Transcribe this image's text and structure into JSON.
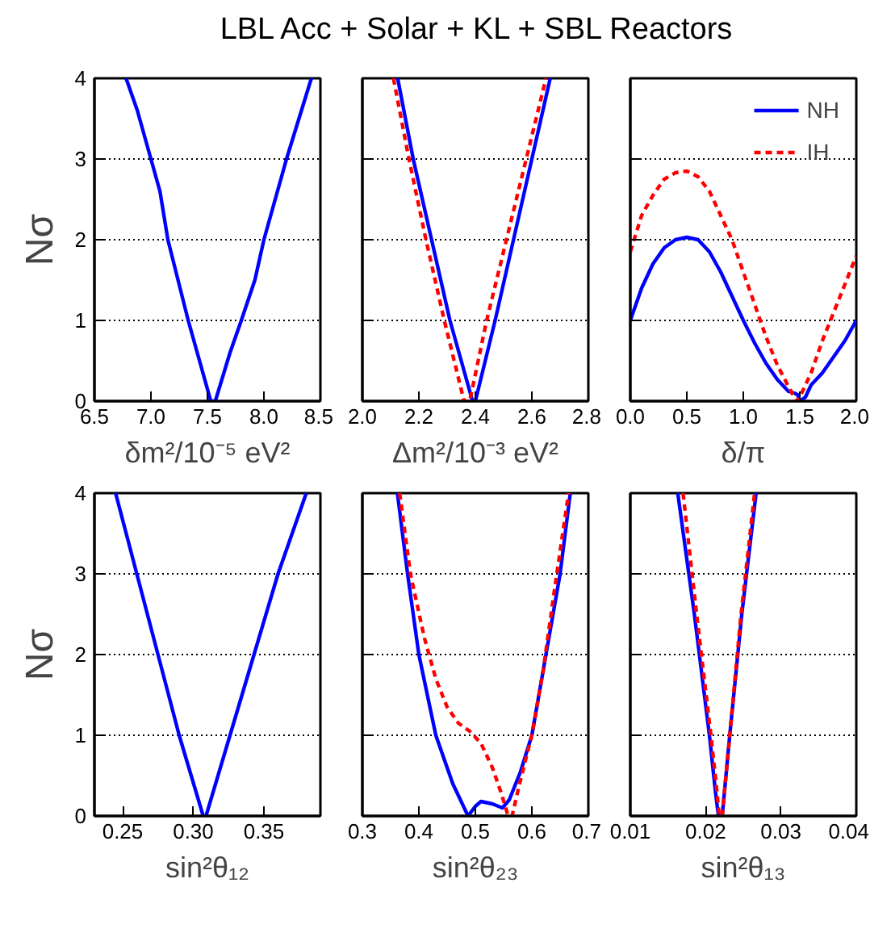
{
  "chart_data": [
    {
      "type": "line",
      "title": "LBL Acc + Solar + KL + SBL Reactors",
      "xlabel": "δm²/10⁻⁵ eV²",
      "ylabel": "Nσ",
      "xlim": [
        6.5,
        8.5
      ],
      "xticks": [
        6.5,
        {
          "value": 7,
          "label": "7.0"
        },
        7.5,
        {
          "value": 8,
          "label": "8.0"
        },
        8.5
      ],
      "ylim": [
        0,
        4
      ],
      "yticks": [
        0,
        1,
        2,
        3,
        4
      ],
      "grid": "y",
      "series": [
        {
          "color": "#0000ff",
          "line_style": "solid",
          "x": [
            6.78,
            6.88,
            7.0,
            7.08,
            7.15,
            7.33,
            7.45,
            7.53,
            7.57,
            7.7,
            7.8,
            7.92,
            8.0,
            8.2,
            8.42
          ],
          "values": [
            4,
            3.6,
            3.0,
            2.6,
            2.0,
            1.0,
            0.4,
            0,
            0,
            0.6,
            1.0,
            1.5,
            2.0,
            3.0,
            4
          ]
        }
      ]
    },
    {
      "type": "line",
      "xlabel": "Δm²/10⁻³ eV²",
      "xlim": [
        2.0,
        2.8
      ],
      "xticks": [
        {
          "value": 2,
          "label": "2.0"
        },
        2.2,
        2.4,
        2.6,
        2.8
      ],
      "ylim": [
        0,
        4
      ],
      "yticks": [
        0,
        1,
        2,
        3,
        4
      ],
      "grid": "y",
      "tick_labels": "x",
      "series": [
        {
          "color": "#0000ff",
          "line_style": "solid",
          "x": [
            2.125,
            2.18,
            2.245,
            2.31,
            2.39,
            2.4,
            2.47,
            2.535,
            2.6,
            2.665
          ],
          "values": [
            4,
            3,
            2,
            1,
            0,
            0,
            1,
            2,
            3,
            4
          ]
        },
        {
          "color": "#ff0000",
          "line_style": "dashed",
          "x": [
            2.11,
            2.165,
            2.225,
            2.29,
            2.36,
            2.38,
            2.44,
            2.51,
            2.58,
            2.65
          ],
          "values": [
            4,
            3,
            2,
            1,
            0,
            0,
            1,
            2,
            3,
            4
          ]
        }
      ]
    },
    {
      "type": "line",
      "xlabel": "δ/π",
      "xlim": [
        0,
        2
      ],
      "xticks": [
        {
          "value": 0,
          "label": "0.0"
        },
        0.5,
        {
          "value": 1,
          "label": "1.0"
        },
        1.5,
        {
          "value": 2,
          "label": "2.0"
        }
      ],
      "ylim": [
        0,
        4
      ],
      "yticks": [
        0,
        1,
        2,
        3,
        4
      ],
      "grid": "y",
      "tick_labels": "x",
      "legend": "top right",
      "series": [
        {
          "name": "NH",
          "color": "#0000ff",
          "line_style": "solid",
          "x": [
            0,
            0.1,
            0.2,
            0.3,
            0.4,
            0.5,
            0.6,
            0.7,
            0.8,
            0.9,
            1.0,
            1.1,
            1.2,
            1.3,
            1.4,
            1.45,
            1.48,
            1.5,
            1.55,
            1.6,
            1.7,
            1.8,
            1.9,
            2.0
          ],
          "values": [
            1.0,
            1.4,
            1.7,
            1.9,
            2.0,
            2.03,
            2.0,
            1.85,
            1.6,
            1.3,
            1.0,
            0.72,
            0.47,
            0.27,
            0.12,
            0.1,
            0.08,
            0.0,
            0.05,
            0.2,
            0.35,
            0.55,
            0.75,
            1.0
          ]
        },
        {
          "name": "IH",
          "color": "#ff0000",
          "line_style": "dashed",
          "x": [
            0,
            0.1,
            0.2,
            0.3,
            0.4,
            0.5,
            0.6,
            0.7,
            0.8,
            0.9,
            1.0,
            1.1,
            1.2,
            1.3,
            1.4,
            1.47,
            1.5,
            1.6,
            1.7,
            1.8,
            1.9,
            2.0
          ],
          "values": [
            1.85,
            2.3,
            2.55,
            2.75,
            2.83,
            2.85,
            2.78,
            2.6,
            2.3,
            2.0,
            1.6,
            1.2,
            0.8,
            0.45,
            0.18,
            0.0,
            0.05,
            0.35,
            0.75,
            1.1,
            1.45,
            1.8
          ]
        }
      ]
    },
    {
      "type": "line",
      "xlabel": "sin²θ₁₂",
      "ylabel": "Nσ",
      "xlim": [
        0.23,
        0.39
      ],
      "xticks": [
        0.25,
        {
          "value": 0.3,
          "label": "0.30"
        },
        0.35
      ],
      "ylim": [
        0,
        4
      ],
      "yticks": [
        0,
        1,
        2,
        3,
        4
      ],
      "grid": "y",
      "series": [
        {
          "color": "#0000ff",
          "line_style": "solid",
          "x": [
            0.245,
            0.26,
            0.275,
            0.29,
            0.307,
            0.309,
            0.326,
            0.343,
            0.36,
            0.38
          ],
          "values": [
            4,
            3,
            2,
            1,
            0,
            0,
            1,
            2,
            3,
            4
          ]
        }
      ]
    },
    {
      "type": "line",
      "xlabel": "sin²θ₂₃",
      "xlim": [
        0.3,
        0.7
      ],
      "xticks": [
        0.3,
        0.4,
        0.5,
        0.6,
        0.7
      ],
      "ylim": [
        0,
        4
      ],
      "yticks": [
        0,
        1,
        2,
        3,
        4
      ],
      "grid": "y",
      "tick_labels": "x",
      "series": [
        {
          "color": "#0000ff",
          "line_style": "solid",
          "x": [
            0.362,
            0.38,
            0.4,
            0.43,
            0.46,
            0.487,
            0.5,
            0.51,
            0.53,
            0.548,
            0.56,
            0.58,
            0.6,
            0.625,
            0.65,
            0.668
          ],
          "values": [
            4,
            3,
            2,
            1,
            0.4,
            0,
            0.12,
            0.18,
            0.15,
            0.1,
            0.2,
            0.55,
            1,
            2,
            3,
            4
          ]
        },
        {
          "color": "#ff0000",
          "line_style": "dashed",
          "x": [
            0.366,
            0.385,
            0.41,
            0.43,
            0.45,
            0.47,
            0.49,
            0.51,
            0.53,
            0.545,
            0.558,
            0.565,
            0.58,
            0.6,
            0.62,
            0.64,
            0.665
          ],
          "values": [
            4,
            3,
            2.2,
            1.7,
            1.35,
            1.15,
            1.05,
            0.9,
            0.6,
            0.3,
            0,
            0,
            0.45,
            1,
            1.8,
            2.8,
            4
          ]
        }
      ]
    },
    {
      "type": "line",
      "xlabel": "sin²θ₁₃",
      "xlim": [
        0.01,
        0.04
      ],
      "xticks": [
        0.01,
        0.02,
        0.03,
        0.04
      ],
      "ylim": [
        0,
        4
      ],
      "yticks": [
        0,
        1,
        2,
        3,
        4
      ],
      "grid": "y",
      "tick_labels": "x",
      "series": [
        {
          "color": "#0000ff",
          "line_style": "solid",
          "x": [
            0.0163,
            0.0185,
            0.0205,
            0.0213,
            0.0217,
            0.0222,
            0.0232,
            0.0248,
            0.0267
          ],
          "values": [
            4,
            2.5,
            1,
            0.3,
            0,
            0,
            1,
            2.5,
            4
          ]
        },
        {
          "color": "#ff0000",
          "line_style": "dashed",
          "x": [
            0.017,
            0.0188,
            0.0207,
            0.0215,
            0.0218,
            0.0222,
            0.0232,
            0.0247,
            0.0265
          ],
          "values": [
            4,
            2.5,
            1,
            0.3,
            0,
            0,
            1,
            2.5,
            4
          ]
        }
      ]
    }
  ]
}
